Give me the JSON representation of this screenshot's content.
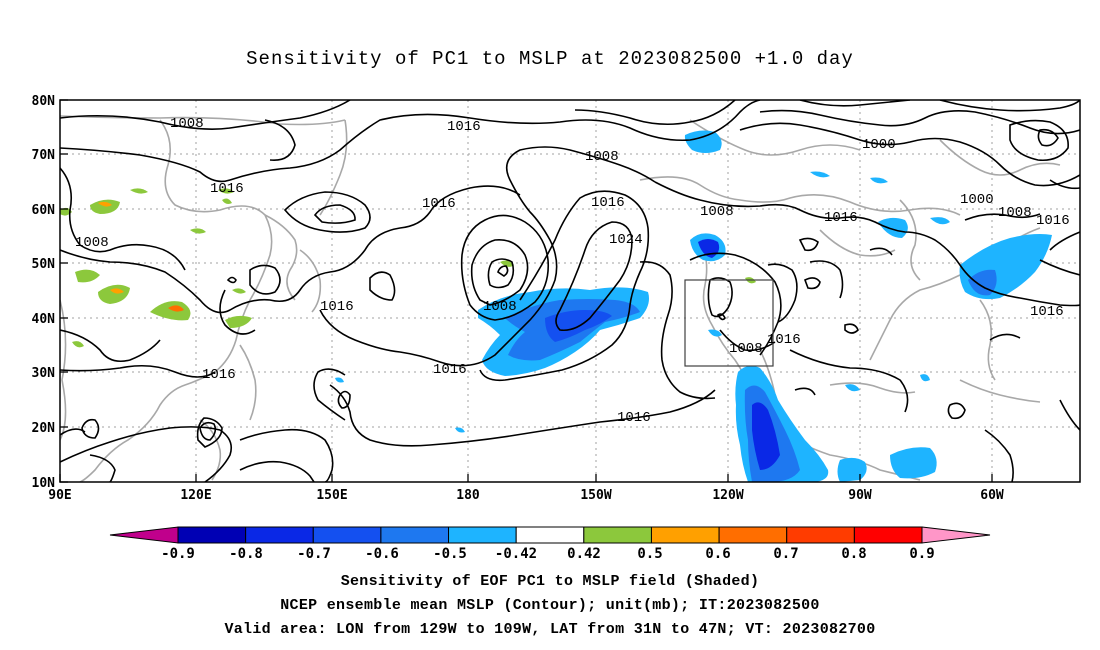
{
  "title": "Sensitivity of PC1 to MSLP at 2023082500 +1.0 day",
  "lat_labels": [
    "80N",
    "70N",
    "60N",
    "50N",
    "40N",
    "30N",
    "20N",
    "10N"
  ],
  "lon_labels": [
    "90E",
    "120E",
    "150E",
    "180",
    "150W",
    "120W",
    "90W",
    "60W"
  ],
  "contour_labels": {
    "c1008a": "1008",
    "c1016a": "1016",
    "c1008b": "1008",
    "c1000a": "1000",
    "c1016b": "1016",
    "c1016c": "1016",
    "c1016d": "1016",
    "c1008c": "1008",
    "c1000b": "1000",
    "c1008d": "1008",
    "c1016e": "1016",
    "c1008e": "1008",
    "c1024": "1024",
    "c1016f": "1016",
    "c1008f": "1008",
    "c1016g": "1016",
    "c1008g": "1008",
    "c1016h": "1016",
    "c1016i": "1016",
    "c1016j": "1016"
  },
  "colorbar": {
    "labels": [
      "-0.9",
      "-0.8",
      "-0.7",
      "-0.6",
      "-0.5",
      "-0.42",
      "0.42",
      "0.5",
      "0.6",
      "0.7",
      "0.8",
      "0.9"
    ],
    "colors": [
      "#c0008c",
      "#0000b4",
      "#0a28e6",
      "#1450f0",
      "#1e78f0",
      "#1eb4ff",
      "#ffffff",
      "#8cc83c",
      "#ffa000",
      "#ff6e00",
      "#ff3c00",
      "#ff0000",
      "#ff96c8"
    ]
  },
  "footer": {
    "line1": "Sensitivity of EOF PC1 to MSLP field (Shaded)",
    "line2": "NCEP ensemble mean MSLP (Contour); unit(mb); IT:2023082500",
    "line3": "Valid area: LON from 129W to 109W, LAT from 31N to 47N; VT: 2023082700"
  }
}
